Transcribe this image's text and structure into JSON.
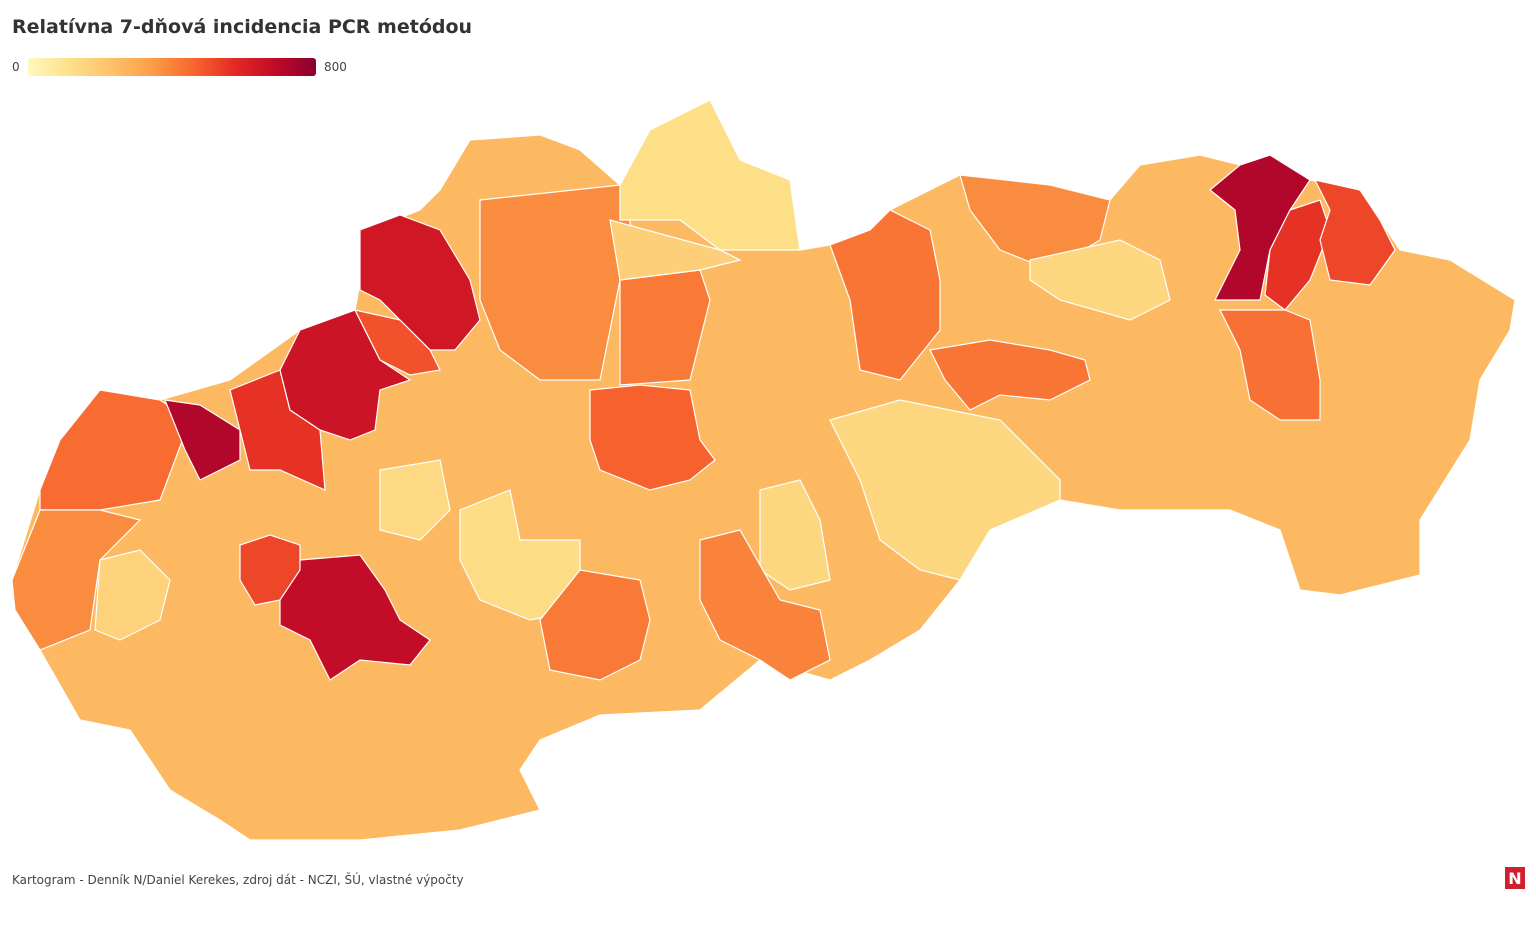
{
  "title": "Relatívna 7-dňová incidencia PCR metódou",
  "legend": {
    "min": 0,
    "max": 800,
    "colors": [
      "#fff8c0",
      "#fde08a",
      "#fdc36a",
      "#fb9e48",
      "#f8682f",
      "#e42b24",
      "#c10a28",
      "#8a0030"
    ]
  },
  "regions": [
    260,
    450,
    720,
    560,
    650,
    640,
    500,
    680,
    520,
    380,
    380,
    470,
    420,
    120,
    180,
    430,
    380,
    150,
    720,
    560,
    520,
    430,
    440,
    150,
    140,
    130,
    170,
    150,
    420,
    400
  ],
  "source": "Kartogram - Denník N/Daniel Kerekes, zdroj dát - NCZI, ŠÚ, vlastné výpočty",
  "logo": "N"
}
